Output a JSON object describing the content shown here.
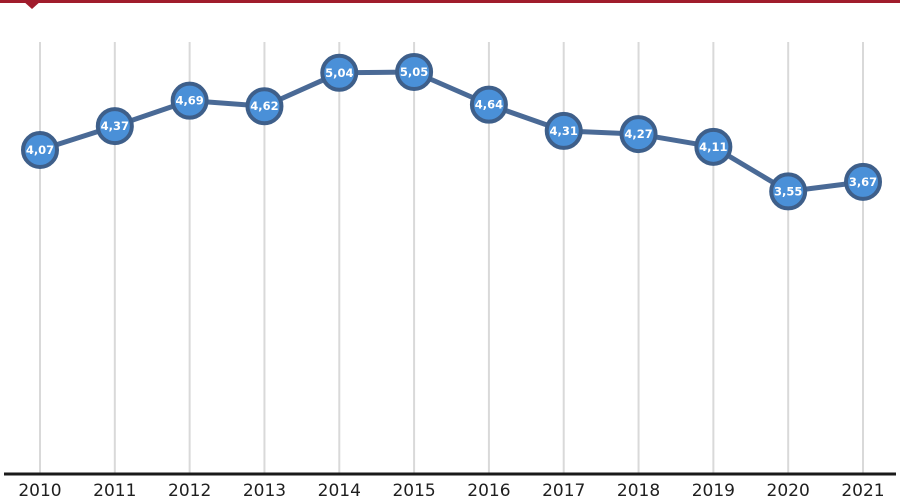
{
  "chart_data": {
    "type": "line",
    "categories": [
      "2010",
      "2011",
      "2012",
      "2013",
      "2014",
      "2015",
      "2016",
      "2017",
      "2018",
      "2019",
      "2020",
      "2021"
    ],
    "values": [
      4.07,
      4.37,
      4.69,
      4.62,
      5.04,
      5.05,
      4.64,
      4.31,
      4.27,
      4.11,
      3.55,
      3.67
    ],
    "value_labels": [
      "4,07",
      "4,37",
      "4,69",
      "4,62",
      "5,04",
      "5,05",
      "4,64",
      "4,31",
      "4,27",
      "4,11",
      "3,55",
      "3,67"
    ],
    "title": "",
    "xlabel": "",
    "ylabel": "",
    "ylim": [
      1.75,
      5.6
    ],
    "grid": "vertical",
    "legend": "none"
  },
  "colors": {
    "accent_bar": "#a01c2c",
    "line": "#4a6a96",
    "marker_fill": "#4a90d8",
    "marker_stroke": "#3e5f8a",
    "grid": "#d9d9d9",
    "axis": "#1a1a1a",
    "tick_text": "#1f1f1f"
  }
}
